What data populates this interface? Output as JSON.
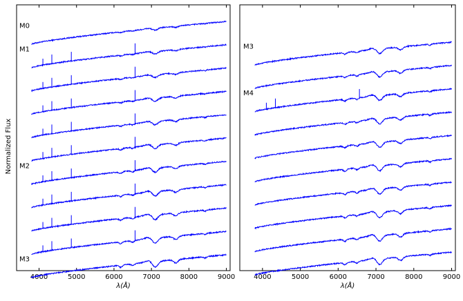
{
  "figure": {
    "ylabel": "Normalized Flux"
  },
  "chart_data": [
    {
      "type": "line",
      "panel": "left",
      "xlabel": "λ(Å)",
      "ylabel": "Normalized Flux",
      "xlim": [
        3400,
        9100
      ],
      "xticks": [
        4000,
        5000,
        6000,
        7000,
        8000,
        9000
      ],
      "grid": false,
      "legend": "none",
      "line_color": "#0000ff",
      "spectral_type_labels": [
        {
          "text": "M0",
          "series_index": 0
        },
        {
          "text": "M1",
          "series_index": 1
        },
        {
          "text": "M2",
          "series_index": 6
        },
        {
          "text": "M3",
          "series_index": 10
        }
      ],
      "series_count": 11,
      "x_range": [
        3800,
        9000
      ],
      "emission_lines": [
        4102,
        4341,
        4861,
        6563
      ]
    },
    {
      "type": "line",
      "panel": "right",
      "xlabel": "λ(Å)",
      "xlim": [
        3400,
        9100
      ],
      "xticks": [
        4000,
        5000,
        6000,
        7000,
        8000,
        9000
      ],
      "grid": false,
      "legend": "none",
      "line_color": "#0000ff",
      "spectral_type_labels": [
        {
          "text": "M3",
          "series_index": 0
        },
        {
          "text": "M4",
          "series_index": 2
        }
      ],
      "series_count": 10,
      "x_range": [
        3800,
        9000
      ],
      "emission_lines": [
        4102,
        4341,
        6563
      ]
    }
  ]
}
